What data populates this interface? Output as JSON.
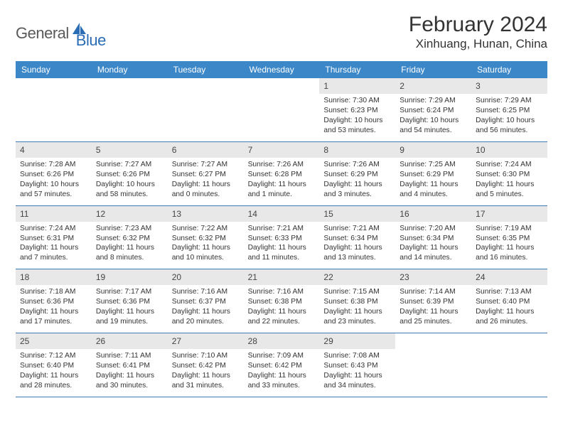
{
  "logo": {
    "text1": "General",
    "text2": "Blue",
    "text1_color": "#5a5a5a",
    "text2_color": "#2a6db5",
    "icon_color": "#2a6db5"
  },
  "header": {
    "month_title": "February 2024",
    "location": "Xinhuang, Hunan, China"
  },
  "style": {
    "header_bg": "#3b87c8",
    "header_fg": "#ffffff",
    "daynum_bg": "#e8e8e8",
    "week_border": "#3b7bb8",
    "text_color": "#333333",
    "font": "Arial",
    "title_fontsize": 30,
    "location_fontsize": 17,
    "dayhead_fontsize": 12,
    "cell_fontsize": 10.3
  },
  "day_headers": [
    "Sunday",
    "Monday",
    "Tuesday",
    "Wednesday",
    "Thursday",
    "Friday",
    "Saturday"
  ],
  "weeks": [
    [
      null,
      null,
      null,
      null,
      {
        "n": "1",
        "sr": "7:30 AM",
        "ss": "6:23 PM",
        "dl": "10 hours and 53 minutes."
      },
      {
        "n": "2",
        "sr": "7:29 AM",
        "ss": "6:24 PM",
        "dl": "10 hours and 54 minutes."
      },
      {
        "n": "3",
        "sr": "7:29 AM",
        "ss": "6:25 PM",
        "dl": "10 hours and 56 minutes."
      }
    ],
    [
      {
        "n": "4",
        "sr": "7:28 AM",
        "ss": "6:26 PM",
        "dl": "10 hours and 57 minutes."
      },
      {
        "n": "5",
        "sr": "7:27 AM",
        "ss": "6:26 PM",
        "dl": "10 hours and 58 minutes."
      },
      {
        "n": "6",
        "sr": "7:27 AM",
        "ss": "6:27 PM",
        "dl": "11 hours and 0 minutes."
      },
      {
        "n": "7",
        "sr": "7:26 AM",
        "ss": "6:28 PM",
        "dl": "11 hours and 1 minute."
      },
      {
        "n": "8",
        "sr": "7:26 AM",
        "ss": "6:29 PM",
        "dl": "11 hours and 3 minutes."
      },
      {
        "n": "9",
        "sr": "7:25 AM",
        "ss": "6:29 PM",
        "dl": "11 hours and 4 minutes."
      },
      {
        "n": "10",
        "sr": "7:24 AM",
        "ss": "6:30 PM",
        "dl": "11 hours and 5 minutes."
      }
    ],
    [
      {
        "n": "11",
        "sr": "7:24 AM",
        "ss": "6:31 PM",
        "dl": "11 hours and 7 minutes."
      },
      {
        "n": "12",
        "sr": "7:23 AM",
        "ss": "6:32 PM",
        "dl": "11 hours and 8 minutes."
      },
      {
        "n": "13",
        "sr": "7:22 AM",
        "ss": "6:32 PM",
        "dl": "11 hours and 10 minutes."
      },
      {
        "n": "14",
        "sr": "7:21 AM",
        "ss": "6:33 PM",
        "dl": "11 hours and 11 minutes."
      },
      {
        "n": "15",
        "sr": "7:21 AM",
        "ss": "6:34 PM",
        "dl": "11 hours and 13 minutes."
      },
      {
        "n": "16",
        "sr": "7:20 AM",
        "ss": "6:34 PM",
        "dl": "11 hours and 14 minutes."
      },
      {
        "n": "17",
        "sr": "7:19 AM",
        "ss": "6:35 PM",
        "dl": "11 hours and 16 minutes."
      }
    ],
    [
      {
        "n": "18",
        "sr": "7:18 AM",
        "ss": "6:36 PM",
        "dl": "11 hours and 17 minutes."
      },
      {
        "n": "19",
        "sr": "7:17 AM",
        "ss": "6:36 PM",
        "dl": "11 hours and 19 minutes."
      },
      {
        "n": "20",
        "sr": "7:16 AM",
        "ss": "6:37 PM",
        "dl": "11 hours and 20 minutes."
      },
      {
        "n": "21",
        "sr": "7:16 AM",
        "ss": "6:38 PM",
        "dl": "11 hours and 22 minutes."
      },
      {
        "n": "22",
        "sr": "7:15 AM",
        "ss": "6:38 PM",
        "dl": "11 hours and 23 minutes."
      },
      {
        "n": "23",
        "sr": "7:14 AM",
        "ss": "6:39 PM",
        "dl": "11 hours and 25 minutes."
      },
      {
        "n": "24",
        "sr": "7:13 AM",
        "ss": "6:40 PM",
        "dl": "11 hours and 26 minutes."
      }
    ],
    [
      {
        "n": "25",
        "sr": "7:12 AM",
        "ss": "6:40 PM",
        "dl": "11 hours and 28 minutes."
      },
      {
        "n": "26",
        "sr": "7:11 AM",
        "ss": "6:41 PM",
        "dl": "11 hours and 30 minutes."
      },
      {
        "n": "27",
        "sr": "7:10 AM",
        "ss": "6:42 PM",
        "dl": "11 hours and 31 minutes."
      },
      {
        "n": "28",
        "sr": "7:09 AM",
        "ss": "6:42 PM",
        "dl": "11 hours and 33 minutes."
      },
      {
        "n": "29",
        "sr": "7:08 AM",
        "ss": "6:43 PM",
        "dl": "11 hours and 34 minutes."
      },
      null,
      null
    ]
  ],
  "labels": {
    "sunrise": "Sunrise:",
    "sunset": "Sunset:",
    "daylight": "Daylight:"
  }
}
